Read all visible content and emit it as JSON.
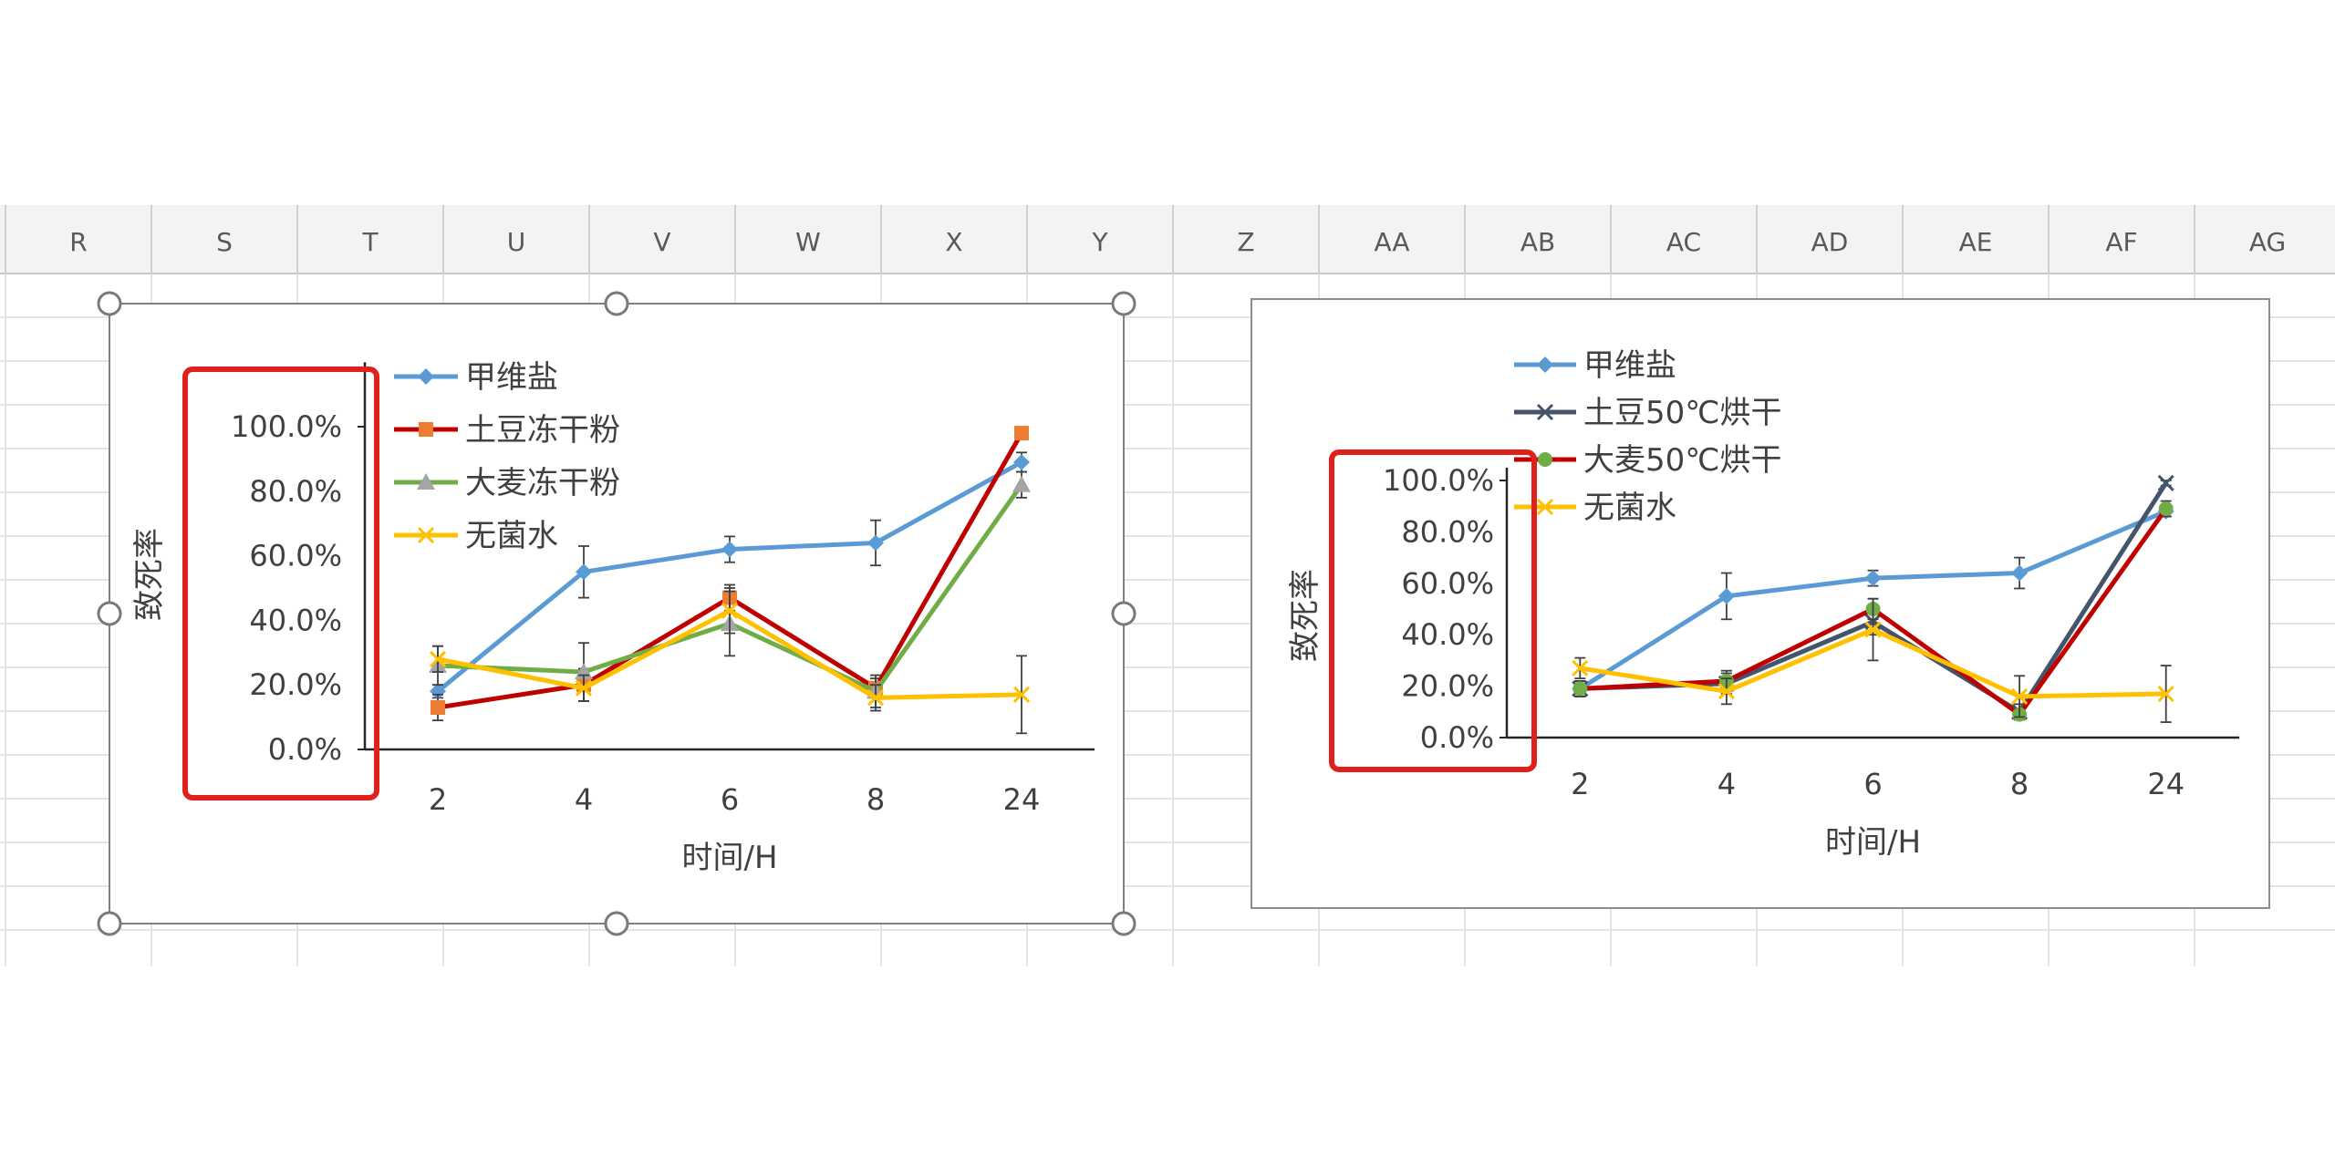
{
  "spreadsheet": {
    "columns": [
      "R",
      "S",
      "T",
      "U",
      "V",
      "W",
      "X",
      "Y",
      "Z",
      "AA",
      "AB",
      "AC",
      "AD",
      "AE",
      "AF",
      "AG"
    ]
  },
  "chart_data": [
    {
      "type": "line",
      "categories": [
        "2",
        "4",
        "6",
        "8",
        "24"
      ],
      "xlabel": "时间/H",
      "ylabel": "致死率",
      "yticks": [
        "100.0%",
        "80.0%",
        "60.0%",
        "40.0%",
        "20.0%",
        "0.0%"
      ],
      "ylim": [
        0,
        1
      ],
      "legend": "top-left",
      "selected": true,
      "highlight": "y-axis-labels",
      "series": [
        {
          "name": "甲维盐",
          "color": "#5b9bd5",
          "marker": "diamond",
          "values": [
            0.18,
            0.55,
            0.62,
            0.64,
            0.89
          ],
          "err": [
            0.02,
            0.08,
            0.04,
            0.07,
            0.03
          ]
        },
        {
          "name": "土豆冻干粉",
          "color": "#c00000",
          "marker": "square",
          "markerColor": "#ed7d31",
          "values": [
            0.13,
            0.2,
            0.47,
            0.19,
            0.98
          ],
          "err": [
            0.04,
            0.05,
            0.04,
            0.03,
            0.01
          ]
        },
        {
          "name": "大麦冻干粉",
          "color": "#70ad47",
          "marker": "triangle",
          "markerColor": "#a5a5a5",
          "values": [
            0.26,
            0.24,
            0.39,
            0.18,
            0.82
          ],
          "err": [
            0.06,
            0.09,
            0.1,
            0.05,
            0.04
          ]
        },
        {
          "name": "无菌水",
          "color": "#ffc000",
          "marker": "x",
          "values": [
            0.28,
            0.19,
            0.43,
            0.16,
            0.17
          ],
          "err": [
            0.04,
            0.04,
            0.07,
            0.04,
            0.12
          ]
        }
      ]
    },
    {
      "type": "line",
      "categories": [
        "2",
        "4",
        "6",
        "8",
        "24"
      ],
      "xlabel": "时间/H",
      "ylabel": "致死率",
      "yticks": [
        "100.0%",
        "80.0%",
        "60.0%",
        "40.0%",
        "20.0%",
        "0.0%"
      ],
      "ylim": [
        0,
        1
      ],
      "legend": "top-left",
      "selected": false,
      "highlight": "y-axis-labels",
      "series": [
        {
          "name": "甲维盐",
          "color": "#5b9bd5",
          "marker": "diamond",
          "values": [
            0.19,
            0.55,
            0.62,
            0.64,
            0.88
          ],
          "err": [
            0.03,
            0.09,
            0.03,
            0.06,
            0.02
          ]
        },
        {
          "name": "土豆50℃烘干",
          "color": "#44546a",
          "marker": "x",
          "values": [
            0.19,
            0.21,
            0.45,
            0.1,
            0.99
          ],
          "err": [
            0.03,
            0.04,
            0.05,
            0.03,
            0.01
          ]
        },
        {
          "name": "大麦50℃烘干",
          "color": "#c00000",
          "marker": "circle",
          "markerColor": "#70ad47",
          "values": [
            0.19,
            0.22,
            0.5,
            0.09,
            0.89
          ],
          "err": [
            0.03,
            0.04,
            0.04,
            0.02,
            0.03
          ]
        },
        {
          "name": "无菌水",
          "color": "#ffc000",
          "marker": "x",
          "values": [
            0.27,
            0.18,
            0.42,
            0.16,
            0.17
          ],
          "err": [
            0.04,
            0.05,
            0.12,
            0.08,
            0.11
          ]
        }
      ]
    }
  ]
}
